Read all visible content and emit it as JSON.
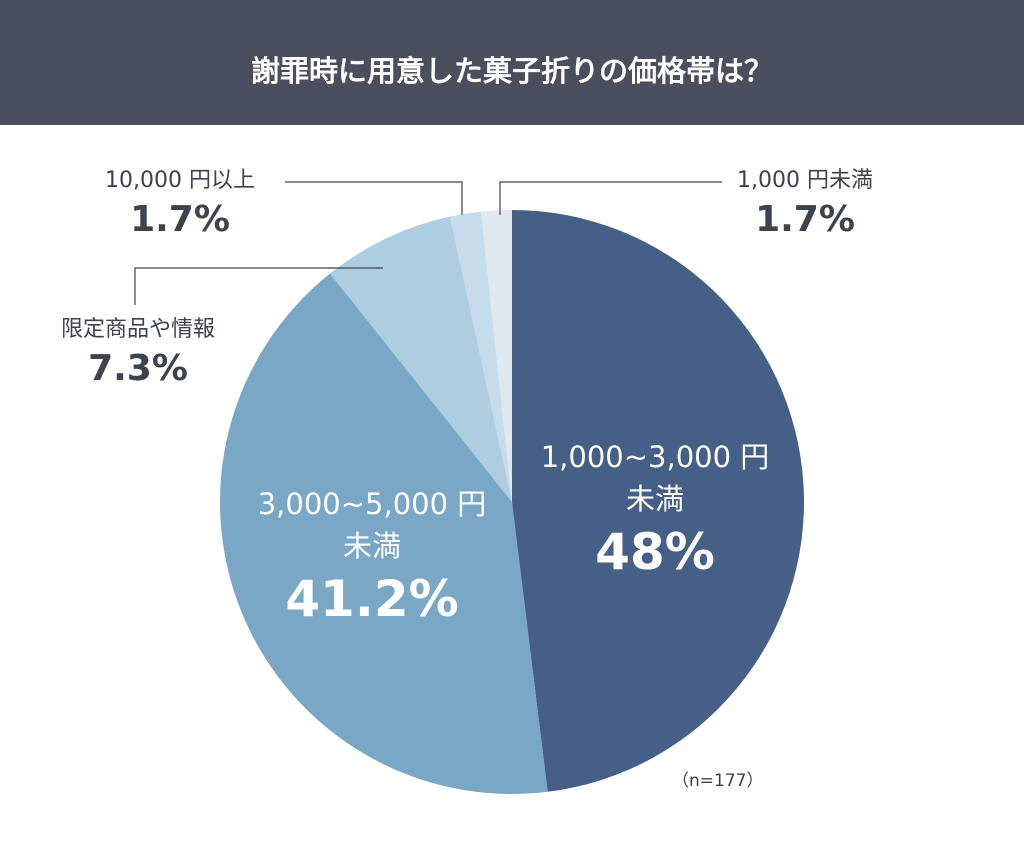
{
  "chart_data": {
    "type": "pie",
    "title": "謝罪時に用意した菓子折りの価格帯は？",
    "categories": [
      "1,000~3,000 円\n未満",
      "3,000~5,000 円\n未満",
      "限定商品や情報",
      "10,000 円以上",
      "1,000 円未満"
    ],
    "values": [
      48,
      41.2,
      7.3,
      1.7,
      1.7
    ],
    "value_labels": [
      "48%",
      "41.2%",
      "7.3%",
      "1.7%",
      "1.7%"
    ],
    "colors": [
      "#465f86",
      "#7ba7c7",
      "#aecde0",
      "#c6dceb",
      "#e0e8f0"
    ],
    "note": "（n=177）"
  }
}
